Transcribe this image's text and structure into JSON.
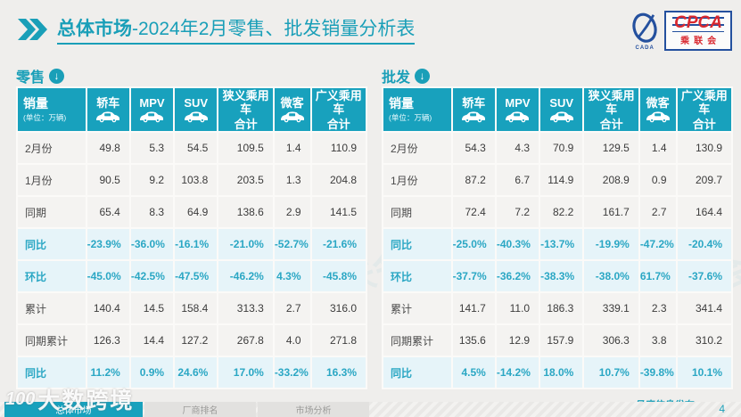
{
  "slide": {
    "title": {
      "bold": "总体市场",
      "rest": "-2024年2月零售、批发销量分析表"
    },
    "logo": {
      "main": "CPCA",
      "sub": "乘联会",
      "emblem_caption": "CADA"
    },
    "footer_note": "月度信息发布",
    "page_number": "4",
    "watermark": {
      "mark": "100",
      "text": "大数跨境"
    },
    "ghost_watermark": "CPCA 乘联会",
    "footer_tabs": [
      {
        "label": "总体市场",
        "active": true
      },
      {
        "label": "厂商排名",
        "active": false
      },
      {
        "label": "市场分析",
        "active": false
      }
    ]
  },
  "icons": {
    "title_chevron": "double-chevron-right",
    "section_arrow": "circle-down-arrow",
    "header_vehicle": "car-icon"
  },
  "colors": {
    "accent_teal": "#18a1bd",
    "highlight_row_bg": "#e6f4f9",
    "highlight_text": "#2ba7c4",
    "plain_row_bg": "#f4f3f1",
    "logo_red": "#d9272e",
    "logo_blue": "#24509e",
    "page_bg": "#efeeec"
  },
  "table_spec": {
    "first_col": {
      "title": "销量",
      "unit": "(单位：万辆)"
    },
    "columns": [
      {
        "label": "轿车",
        "icon": true
      },
      {
        "label": "MPV",
        "icon": true
      },
      {
        "label": "SUV",
        "icon": true
      },
      {
        "label": "狭义乘用车合计",
        "icon": false,
        "lines": [
          "狭义乘用车",
          "合计"
        ]
      },
      {
        "label": "微客",
        "icon": true
      },
      {
        "label": "广义乘用车合计",
        "icon": false,
        "lines": [
          "广义乘用车",
          "合计"
        ]
      }
    ]
  },
  "chart_data": [
    {
      "type": "table",
      "title": "零售",
      "columns": [
        "轿车",
        "MPV",
        "SUV",
        "狭义乘用车合计",
        "微客",
        "广义乘用车合计"
      ],
      "rows": [
        {
          "label": "2月份",
          "values": [
            "49.8",
            "5.3",
            "54.5",
            "109.5",
            "1.4",
            "110.9"
          ],
          "highlight": false
        },
        {
          "label": "1月份",
          "values": [
            "90.5",
            "9.2",
            "103.8",
            "203.5",
            "1.3",
            "204.8"
          ],
          "highlight": false
        },
        {
          "label": "同期",
          "values": [
            "65.4",
            "8.3",
            "64.9",
            "138.6",
            "2.9",
            "141.5"
          ],
          "highlight": false
        },
        {
          "label": "同比",
          "values": [
            "-23.9%",
            "-36.0%",
            "-16.1%",
            "-21.0%",
            "-52.7%",
            "-21.6%"
          ],
          "highlight": true
        },
        {
          "label": "环比",
          "values": [
            "-45.0%",
            "-42.5%",
            "-47.5%",
            "-46.2%",
            "4.3%",
            "-45.8%"
          ],
          "highlight": true
        },
        {
          "label": "累计",
          "values": [
            "140.4",
            "14.5",
            "158.4",
            "313.3",
            "2.7",
            "316.0"
          ],
          "highlight": false
        },
        {
          "label": "同期累计",
          "values": [
            "126.3",
            "14.4",
            "127.2",
            "267.8",
            "4.0",
            "271.8"
          ],
          "highlight": false
        },
        {
          "label": "同比",
          "values": [
            "11.2%",
            "0.9%",
            "24.6%",
            "17.0%",
            "-33.2%",
            "16.3%"
          ],
          "highlight": true
        }
      ]
    },
    {
      "type": "table",
      "title": "批发",
      "columns": [
        "轿车",
        "MPV",
        "SUV",
        "狭义乘用车合计",
        "微客",
        "广义乘用车合计"
      ],
      "rows": [
        {
          "label": "2月份",
          "values": [
            "54.3",
            "4.3",
            "70.9",
            "129.5",
            "1.4",
            "130.9"
          ],
          "highlight": false
        },
        {
          "label": "1月份",
          "values": [
            "87.2",
            "6.7",
            "114.9",
            "208.9",
            "0.9",
            "209.7"
          ],
          "highlight": false
        },
        {
          "label": "同期",
          "values": [
            "72.4",
            "7.2",
            "82.2",
            "161.7",
            "2.7",
            "164.4"
          ],
          "highlight": false
        },
        {
          "label": "同比",
          "values": [
            "-25.0%",
            "-40.3%",
            "-13.7%",
            "-19.9%",
            "-47.2%",
            "-20.4%"
          ],
          "highlight": true
        },
        {
          "label": "环比",
          "values": [
            "-37.7%",
            "-36.2%",
            "-38.3%",
            "-38.0%",
            "61.7%",
            "-37.6%"
          ],
          "highlight": true
        },
        {
          "label": "累计",
          "values": [
            "141.7",
            "11.0",
            "186.3",
            "339.1",
            "2.3",
            "341.4"
          ],
          "highlight": false
        },
        {
          "label": "同期累计",
          "values": [
            "135.6",
            "12.9",
            "157.9",
            "306.3",
            "3.8",
            "310.2"
          ],
          "highlight": false
        },
        {
          "label": "同比",
          "values": [
            "4.5%",
            "-14.2%",
            "18.0%",
            "10.7%",
            "-39.8%",
            "10.1%"
          ],
          "highlight": true
        }
      ]
    }
  ]
}
